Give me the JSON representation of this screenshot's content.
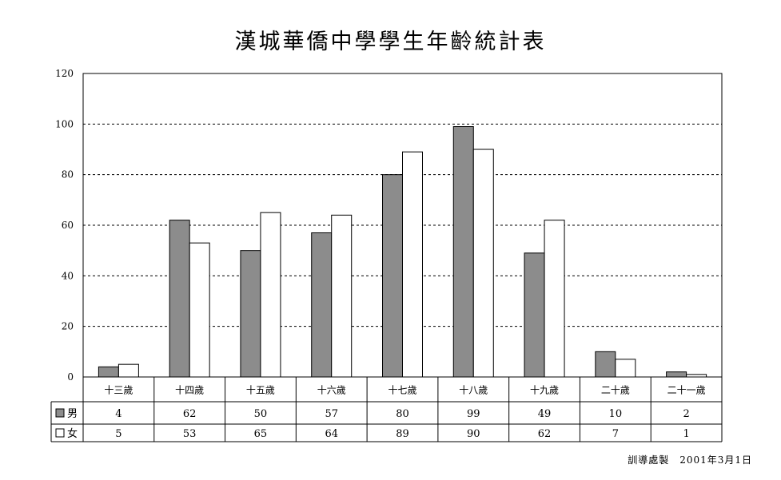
{
  "title": "漢城華僑中學學生年齡統計表",
  "footer": "訓導處製　2001年3月1日",
  "chart_data": {
    "type": "bar",
    "title": "漢城華僑中學學生年齡統計表",
    "categories": [
      "十三歲",
      "十四歲",
      "十五歲",
      "十六歲",
      "十七歲",
      "十八歲",
      "十九歲",
      "二十歲",
      "二十一歲"
    ],
    "series": [
      {
        "name": "男",
        "values": [
          4,
          62,
          50,
          57,
          80,
          99,
          49,
          10,
          2
        ],
        "color": "#8c8c8c"
      },
      {
        "name": "女",
        "values": [
          5,
          53,
          65,
          64,
          89,
          90,
          62,
          7,
          1
        ],
        "color": "#ffffff"
      }
    ],
    "ylim": [
      0,
      120
    ],
    "yticks": [
      0,
      20,
      40,
      60,
      80,
      100,
      120
    ],
    "grid": true,
    "grid_style": "dashed",
    "legend": "data-table-left"
  }
}
